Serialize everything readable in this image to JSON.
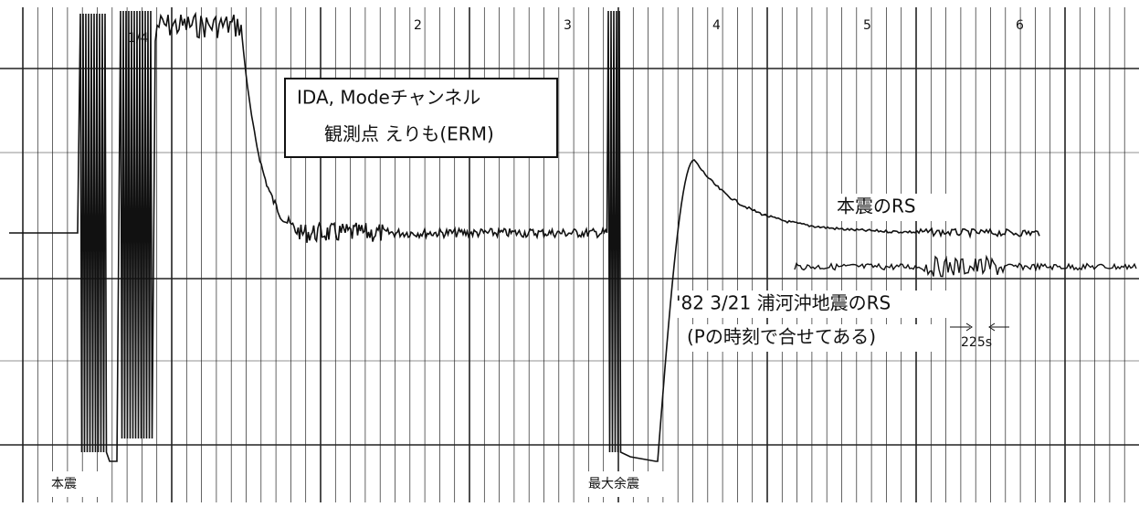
{
  "header": {
    "title": "IDA, Modeチャンネル",
    "station": "観測点 えりも(ERM)"
  },
  "hour_marks": [
    "1/4",
    "2",
    "3",
    "4",
    "5",
    "6"
  ],
  "annotations": {
    "mainshock_rs": "本震のRS",
    "urakawa_rs": "'82 3/21 浦河沖地震のRS",
    "aligned": "(Pの時刻で合せてある)",
    "interval": "225s",
    "mainshock": "本震",
    "largest_aftershock": "最大余震"
  }
}
